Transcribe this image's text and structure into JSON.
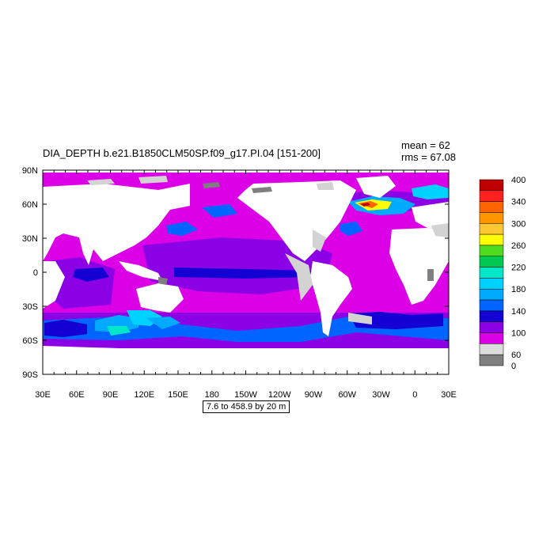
{
  "title": "DIA_DEPTH b.e21.B1850CLM50SP.f09_g17.PI.04 [151-200]",
  "stats": {
    "mean": "mean = 62",
    "rms": "rms = 67.08"
  },
  "range_text": "7.6 to 458.9 by 20 m",
  "map": {
    "projection": "cylindrical-equidistant",
    "lon_range": [
      30,
      390
    ],
    "lat_range": [
      -90,
      90
    ],
    "lon_ticks": [
      "30E",
      "60E",
      "90E",
      "120E",
      "150E",
      "180",
      "150W",
      "120W",
      "90W",
      "60W",
      "30W",
      "0",
      "30E"
    ],
    "lat_ticks": [
      "90N",
      "60N",
      "30N",
      "0",
      "30S",
      "60S",
      "90S"
    ],
    "land_color": "#ffffff",
    "ice_color": "#d3d3d3",
    "missing_color": "#7f7f7f"
  },
  "colorbar": {
    "labels": [
      "400",
      "340",
      "300",
      "260",
      "220",
      "180",
      "140",
      "100",
      "60",
      "0"
    ],
    "colors": [
      "#c00000",
      "#ff2020",
      "#ff6400",
      "#ff9600",
      "#ffc832",
      "#ffff00",
      "#50dc1e",
      "#00c850",
      "#00e6c8",
      "#00d2ff",
      "#00aaff",
      "#0064ff",
      "#1400d2",
      "#8c00e6",
      "#dc00e6",
      "#dcdcdc",
      "#7f7f7f"
    ]
  }
}
